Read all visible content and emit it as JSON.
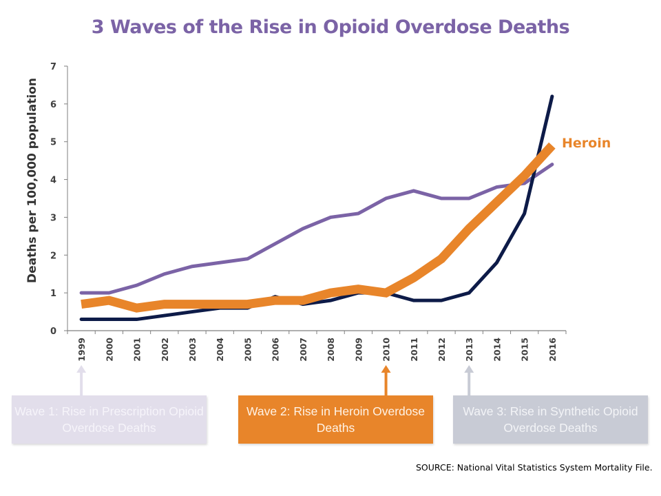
{
  "chart_data": {
    "type": "line",
    "title": "3 Waves of the Rise in Opioid Overdose Deaths",
    "xlabel": "",
    "ylabel": "Deaths per 100,000 population",
    "ylim": [
      0,
      7
    ],
    "yticks": [
      "0",
      "1",
      "2",
      "3",
      "4",
      "5",
      "6",
      "7"
    ],
    "grid": false,
    "x": [
      "1999",
      "2000",
      "2001",
      "2002",
      "2003",
      "2004",
      "2005",
      "2006",
      "2007",
      "2008",
      "2009",
      "2010",
      "2011",
      "2012",
      "2013",
      "2014",
      "2015",
      "2016"
    ],
    "series": [
      {
        "name": "Prescription Opioids",
        "color": "#7b63a6",
        "values": [
          1.0,
          1.0,
          1.2,
          1.5,
          1.7,
          1.8,
          1.9,
          2.3,
          2.7,
          3.0,
          3.1,
          3.5,
          3.7,
          3.5,
          3.5,
          3.8,
          3.9,
          4.4
        ]
      },
      {
        "name": "Synthetic Opioids",
        "color": "#0d1b48",
        "values": [
          0.3,
          0.3,
          0.3,
          0.4,
          0.5,
          0.6,
          0.6,
          0.9,
          0.7,
          0.8,
          1.0,
          1.0,
          0.8,
          0.8,
          1.0,
          1.8,
          3.1,
          6.2
        ]
      },
      {
        "name": "Heroin",
        "color": "#e8852a",
        "values": [
          0.7,
          0.8,
          0.6,
          0.7,
          0.7,
          0.7,
          0.7,
          0.8,
          0.8,
          1.0,
          1.1,
          1.0,
          1.4,
          1.9,
          2.7,
          3.4,
          4.1,
          4.9
        ]
      }
    ],
    "annotations": {
      "heroin_label": "Heroin",
      "waves": [
        {
          "label": "Wave 1: Rise in Prescription Opioid Overdose Deaths",
          "year": "1999",
          "color": "#e2deeb"
        },
        {
          "label": "Wave 2: Rise in Heroin Overdose Deaths",
          "year": "2010",
          "color": "#e8852a"
        },
        {
          "label": "Wave 3: Rise in Synthetic Opioid Overdose Deaths",
          "year": "2013",
          "color": "#c8cbd5"
        }
      ]
    },
    "source": "SOURCE: National Vital Statistics System Mortality File."
  }
}
